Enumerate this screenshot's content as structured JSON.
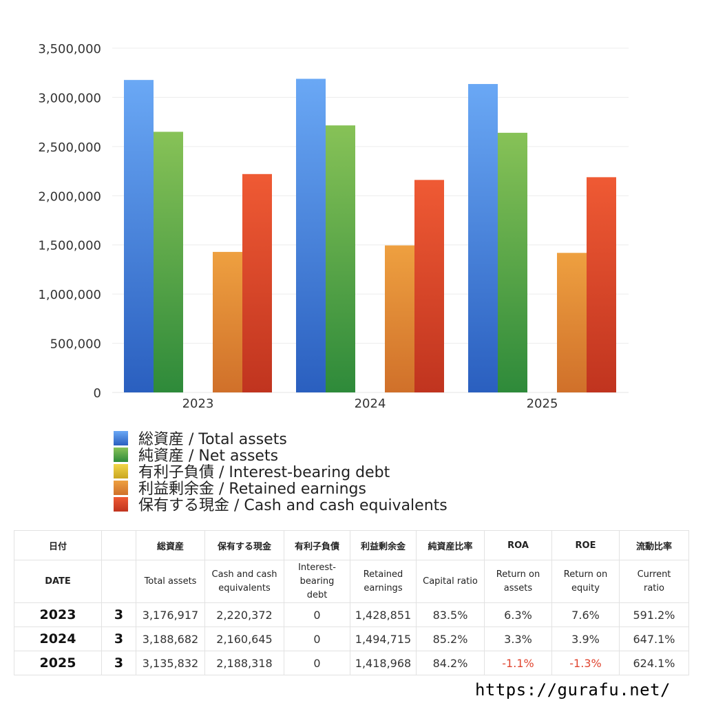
{
  "chart_data": {
    "type": "bar",
    "categories": [
      "2023",
      "2024",
      "2025"
    ],
    "ylim": [
      0,
      3500000
    ],
    "yticks": [
      0,
      500000,
      1000000,
      1500000,
      2000000,
      2500000,
      3000000,
      3500000
    ],
    "ytick_labels": [
      "0",
      "500,000",
      "1,000,000",
      "1,500,000",
      "2,000,000",
      "2,500,000",
      "3,000,000",
      "3,500,000"
    ],
    "grid": true,
    "legend_position": "bottom",
    "series": [
      {
        "name": "総資産 / Total assets",
        "values": [
          3176917,
          3188682,
          3135832
        ],
        "color_top": "#6aa8f5",
        "color_bottom": "#2a5fbf"
      },
      {
        "name": "純資産 / Net assets",
        "values": [
          2650000,
          2715000,
          2640000
        ],
        "color_top": "#87c257",
        "color_bottom": "#2e8a3a"
      },
      {
        "name": "有利子負債 / Interest-bearing debt",
        "values": [
          0,
          0,
          0
        ],
        "color_top": "#f2d64a",
        "color_bottom": "#c9a620"
      },
      {
        "name": "利益剰余金 / Retained earnings",
        "values": [
          1428851,
          1494715,
          1418968
        ],
        "color_top": "#eea040",
        "color_bottom": "#d0702a"
      },
      {
        "name": "保有する現金 /  Cash and cash equivalents",
        "values": [
          2220372,
          2160645,
          2188318
        ],
        "color_top": "#ef5a34",
        "color_bottom": "#c0341f"
      }
    ]
  },
  "table": {
    "headers_jp": [
      "日付",
      "",
      "総資産",
      "保有する現金",
      "有利子負債",
      "利益剰余金",
      "純資産比率",
      "ROA",
      "ROE",
      "流動比率"
    ],
    "headers_en": [
      "DATE",
      "",
      "Total assets",
      "Cash and cash\nequivalents",
      "Interest-\nbearing\ndebt",
      "Retained\nearnings",
      "Capital ratio",
      "Return on\nassets",
      "Return on\nequity",
      "Current\nratio"
    ],
    "rows": [
      {
        "date": "2023",
        "count": "3",
        "total_assets": "3,176,917",
        "cash": "2,220,372",
        "debt": "0",
        "retained": "1,428,851",
        "capital_ratio": "83.5%",
        "roa": "6.3%",
        "roe": "7.6%",
        "current_ratio": "591.2%"
      },
      {
        "date": "2024",
        "count": "3",
        "total_assets": "3,188,682",
        "cash": "2,160,645",
        "debt": "0",
        "retained": "1,494,715",
        "capital_ratio": "85.2%",
        "roa": "3.3%",
        "roe": "3.9%",
        "current_ratio": "647.1%"
      },
      {
        "date": "2025",
        "count": "3",
        "total_assets": "3,135,832",
        "cash": "2,188,318",
        "debt": "0",
        "retained": "1,418,968",
        "capital_ratio": "84.2%",
        "roa": "-1.1%",
        "roe": "-1.3%",
        "current_ratio": "624.1%"
      }
    ],
    "negative_color": "#e0442f"
  },
  "footer": {
    "url": "https://gurafu.net/"
  }
}
